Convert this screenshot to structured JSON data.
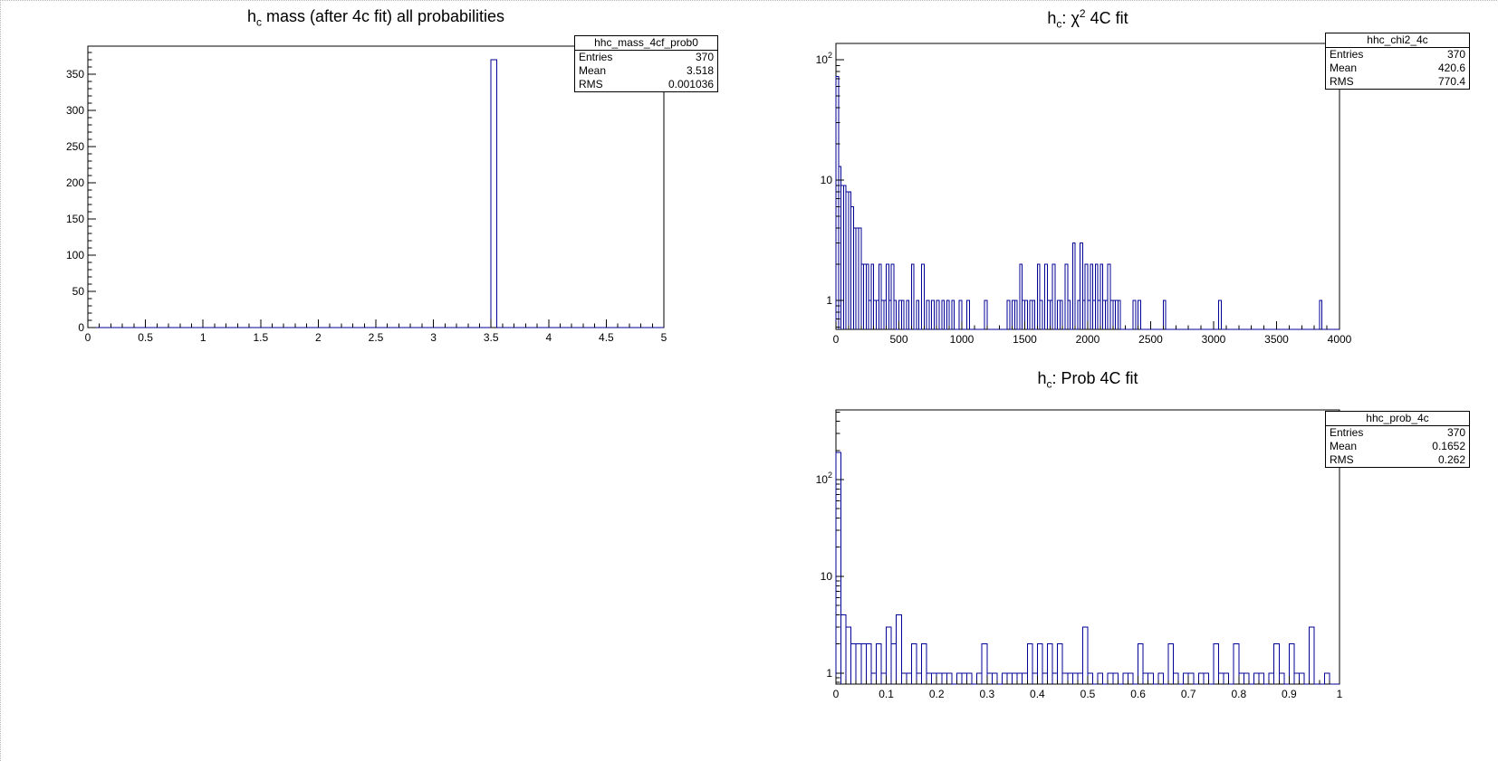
{
  "colors": {
    "background": "#ffffff",
    "histogram_line": "#000096",
    "axis": "#000000"
  },
  "chart_data": [
    {
      "id": "hc-mass",
      "type": "bar",
      "title_parts": {
        "base": "h",
        "sub": "c",
        "rest": " mass (after 4c fit) all probabilities"
      },
      "stats": {
        "name": "hhc_mass_4cf_prob0",
        "entries_label": "Entries",
        "entries": "370",
        "mean_label": "Mean",
        "mean": "3.518",
        "rms_label": "RMS",
        "rms": "0.001036"
      },
      "x": {
        "min": 0,
        "max": 5,
        "major_step": 0.5,
        "minor_step": 0.1,
        "tick_labels": [
          "0",
          "0.5",
          "1",
          "1.5",
          "2",
          "2.5",
          "3",
          "3.5",
          "4",
          "4.5",
          "5"
        ]
      },
      "y": {
        "scale": "linear",
        "min": 0,
        "max": 389,
        "major_step": 50,
        "minor_step": 10,
        "tick_labels": [
          "0",
          "50",
          "100",
          "150",
          "200",
          "250",
          "300",
          "350"
        ]
      },
      "bin_width": 0.05,
      "bins": [
        [
          3.5,
          370
        ]
      ]
    },
    {
      "id": "hc-chi2",
      "type": "bar",
      "title_parts": {
        "base": "h",
        "sub": "c",
        "mid": ": ",
        "sym": "χ",
        "sup": "2",
        "rest": " 4C fit"
      },
      "stats": {
        "name": "hhc_chi2_4c",
        "entries_label": "Entries",
        "entries": "370",
        "mean_label": "Mean",
        "mean": "420.6",
        "rms_label": "RMS",
        "rms": "770.4"
      },
      "x": {
        "min": 0,
        "max": 4000,
        "major_step": 500,
        "minor_step": 100,
        "tick_labels": [
          "0",
          "500",
          "1000",
          "1500",
          "2000",
          "2500",
          "3000",
          "3500",
          "4000"
        ]
      },
      "y": {
        "scale": "log",
        "min": 0.574,
        "max": 137,
        "tick_labels": [
          {
            "v": 1,
            "text": "1"
          },
          {
            "v": 10,
            "text": "10"
          },
          {
            "v": 100,
            "text": "10",
            "exp": "2"
          }
        ]
      },
      "bin_width": 20,
      "bins": [
        [
          0,
          73
        ],
        [
          20,
          13
        ],
        [
          40,
          9
        ],
        [
          60,
          9
        ],
        [
          80,
          8
        ],
        [
          100,
          8
        ],
        [
          120,
          6
        ],
        [
          140,
          4
        ],
        [
          160,
          4
        ],
        [
          180,
          4
        ],
        [
          200,
          2
        ],
        [
          220,
          2
        ],
        [
          240,
          2
        ],
        [
          260,
          1
        ],
        [
          280,
          2
        ],
        [
          300,
          1
        ],
        [
          320,
          1
        ],
        [
          340,
          2
        ],
        [
          360,
          1
        ],
        [
          380,
          1
        ],
        [
          400,
          2
        ],
        [
          420,
          1
        ],
        [
          440,
          2
        ],
        [
          460,
          1
        ],
        [
          500,
          1
        ],
        [
          520,
          1
        ],
        [
          560,
          1
        ],
        [
          600,
          2
        ],
        [
          640,
          1
        ],
        [
          680,
          2
        ],
        [
          720,
          1
        ],
        [
          760,
          1
        ],
        [
          800,
          1
        ],
        [
          840,
          1
        ],
        [
          880,
          1
        ],
        [
          920,
          1
        ],
        [
          980,
          1
        ],
        [
          1040,
          1
        ],
        [
          1180,
          1
        ],
        [
          1360,
          1
        ],
        [
          1400,
          1
        ],
        [
          1420,
          1
        ],
        [
          1460,
          2
        ],
        [
          1480,
          1
        ],
        [
          1500,
          1
        ],
        [
          1540,
          1
        ],
        [
          1560,
          1
        ],
        [
          1600,
          2
        ],
        [
          1620,
          1
        ],
        [
          1660,
          2
        ],
        [
          1680,
          1
        ],
        [
          1700,
          1
        ],
        [
          1720,
          2
        ],
        [
          1760,
          1
        ],
        [
          1780,
          1
        ],
        [
          1820,
          2
        ],
        [
          1840,
          1
        ],
        [
          1880,
          3
        ],
        [
          1920,
          1
        ],
        [
          1940,
          3
        ],
        [
          1960,
          1
        ],
        [
          1980,
          2
        ],
        [
          2000,
          1
        ],
        [
          2020,
          2
        ],
        [
          2040,
          1
        ],
        [
          2060,
          2
        ],
        [
          2080,
          1
        ],
        [
          2100,
          2
        ],
        [
          2120,
          1
        ],
        [
          2140,
          1
        ],
        [
          2160,
          2
        ],
        [
          2180,
          1
        ],
        [
          2200,
          1
        ],
        [
          2220,
          1
        ],
        [
          2240,
          1
        ],
        [
          2360,
          1
        ],
        [
          2400,
          1
        ],
        [
          2600,
          1
        ],
        [
          3040,
          1
        ],
        [
          3840,
          1
        ]
      ]
    },
    {
      "id": "hc-prob",
      "type": "bar",
      "title_parts": {
        "base": "h",
        "sub": "c",
        "rest": ": Prob 4C fit"
      },
      "stats": {
        "name": "hhc_prob_4c",
        "entries_label": "Entries",
        "entries": "370",
        "mean_label": "Mean",
        "mean": "0.1652",
        "rms_label": "RMS",
        "rms": "0.262"
      },
      "x": {
        "min": 0,
        "max": 1,
        "major_step": 0.1,
        "minor_step": 0.02,
        "tick_labels": [
          "0",
          "0.1",
          "0.2",
          "0.3",
          "0.4",
          "0.5",
          "0.6",
          "0.7",
          "0.8",
          "0.9",
          "1"
        ]
      },
      "y": {
        "scale": "log",
        "min": 0.77,
        "max": 525,
        "tick_labels": [
          {
            "v": 1,
            "text": "1"
          },
          {
            "v": 10,
            "text": "10"
          },
          {
            "v": 100,
            "text": "10",
            "exp": "2"
          }
        ]
      },
      "bin_width": 0.01,
      "bins": [
        [
          0,
          190
        ],
        [
          0.01,
          4
        ],
        [
          0.02,
          3
        ],
        [
          0.03,
          2
        ],
        [
          0.04,
          2
        ],
        [
          0.05,
          2
        ],
        [
          0.06,
          2
        ],
        [
          0.07,
          1
        ],
        [
          0.08,
          2
        ],
        [
          0.09,
          1
        ],
        [
          0.1,
          3
        ],
        [
          0.11,
          2
        ],
        [
          0.12,
          4
        ],
        [
          0.13,
          1
        ],
        [
          0.14,
          1
        ],
        [
          0.15,
          2
        ],
        [
          0.16,
          1
        ],
        [
          0.17,
          2
        ],
        [
          0.18,
          1
        ],
        [
          0.19,
          1
        ],
        [
          0.2,
          1
        ],
        [
          0.21,
          1
        ],
        [
          0.22,
          1
        ],
        [
          0.24,
          1
        ],
        [
          0.25,
          1
        ],
        [
          0.26,
          1
        ],
        [
          0.28,
          1
        ],
        [
          0.29,
          2
        ],
        [
          0.3,
          1
        ],
        [
          0.31,
          1
        ],
        [
          0.33,
          1
        ],
        [
          0.34,
          1
        ],
        [
          0.35,
          1
        ],
        [
          0.36,
          1
        ],
        [
          0.37,
          1
        ],
        [
          0.38,
          2
        ],
        [
          0.39,
          1
        ],
        [
          0.4,
          2
        ],
        [
          0.41,
          1
        ],
        [
          0.42,
          2
        ],
        [
          0.43,
          1
        ],
        [
          0.44,
          2
        ],
        [
          0.45,
          1
        ],
        [
          0.46,
          1
        ],
        [
          0.47,
          1
        ],
        [
          0.48,
          1
        ],
        [
          0.49,
          3
        ],
        [
          0.5,
          1
        ],
        [
          0.52,
          1
        ],
        [
          0.54,
          1
        ],
        [
          0.55,
          1
        ],
        [
          0.57,
          1
        ],
        [
          0.58,
          1
        ],
        [
          0.6,
          2
        ],
        [
          0.61,
          1
        ],
        [
          0.62,
          1
        ],
        [
          0.64,
          1
        ],
        [
          0.66,
          2
        ],
        [
          0.67,
          1
        ],
        [
          0.69,
          1
        ],
        [
          0.7,
          1
        ],
        [
          0.72,
          1
        ],
        [
          0.73,
          1
        ],
        [
          0.75,
          2
        ],
        [
          0.76,
          1
        ],
        [
          0.77,
          1
        ],
        [
          0.79,
          2
        ],
        [
          0.8,
          1
        ],
        [
          0.81,
          1
        ],
        [
          0.83,
          1
        ],
        [
          0.84,
          1
        ],
        [
          0.86,
          1
        ],
        [
          0.87,
          2
        ],
        [
          0.88,
          1
        ],
        [
          0.9,
          2
        ],
        [
          0.91,
          1
        ],
        [
          0.92,
          1
        ],
        [
          0.94,
          3
        ],
        [
          0.97,
          1
        ]
      ]
    }
  ]
}
